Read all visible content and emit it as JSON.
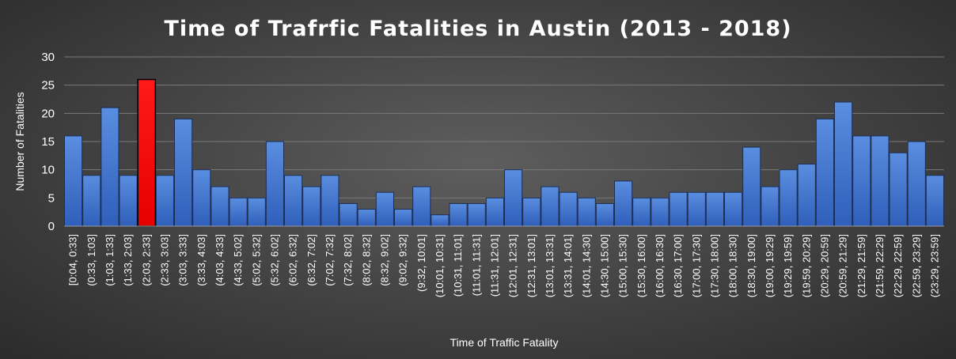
{
  "chart_data": {
    "type": "bar",
    "title": "Time of Trafrfic Fatalities in Austin (2013 - 2018)",
    "xlabel": "Time of Traffic Fatality",
    "ylabel": "Number of Fatalities",
    "ylim": [
      0,
      30
    ],
    "yticks": [
      0,
      5,
      10,
      15,
      20,
      25,
      30
    ],
    "grid": true,
    "highlight_index": 4,
    "bar_color": "#3f72cf",
    "highlight_color": "#ff0000",
    "categories": [
      "[0:04, 0:33]",
      "(0:33, 1:03]",
      "(1:03, 1:33]",
      "(1:33, 2:03]",
      "(2:03, 2:33]",
      "(2:33, 3:03]",
      "(3:03, 3:33]",
      "(3:33, 4:03]",
      "(4:03, 4:33]",
      "(4:33, 5:02]",
      "(5:02, 5:32]",
      "(5:32, 6:02]",
      "(6:02, 6:32]",
      "(6:32, 7:02]",
      "(7:02, 7:32]",
      "(7:32, 8:02]",
      "(8:02, 8:32]",
      "(8:32, 9:02]",
      "(9:02, 9:32]",
      "(9:32, 10:01]",
      "(10:01, 10:31]",
      "(10:31, 11:01]",
      "(11:01, 11:31]",
      "(11:31, 12:01]",
      "(12:01, 12:31]",
      "(12:31, 13:01]",
      "(13:01, 13:31]",
      "(13:31, 14:01]",
      "(14:01, 14:30]",
      "(14:30, 15:00]",
      "(15:00, 15:30]",
      "(15:30, 16:00]",
      "(16:00, 16:30]",
      "(16:30, 17:00]",
      "(17:00, 17:30]",
      "(17:30, 18:00]",
      "(18:00, 18:30]",
      "(18:30, 19:00]",
      "(19:00, 19:29]",
      "(19:29, 19:59]",
      "(19:59, 20:29]",
      "(20:29, 20:59]",
      "(20:59, 21:29]",
      "(21:29, 21:59]",
      "(21:59, 22:29]",
      "(22:29, 22:59]",
      "(22:59, 23:29]",
      "(23:29, 23:59]"
    ],
    "values": [
      16,
      9,
      21,
      9,
      26,
      9,
      19,
      10,
      7,
      5,
      5,
      15,
      9,
      7,
      9,
      4,
      3,
      6,
      3,
      7,
      2,
      4,
      4,
      5,
      10,
      5,
      7,
      6,
      5,
      4,
      8,
      5,
      5,
      6,
      6,
      6,
      6,
      14,
      7,
      10,
      11,
      19,
      22,
      16,
      16,
      13,
      15,
      9
    ]
  }
}
